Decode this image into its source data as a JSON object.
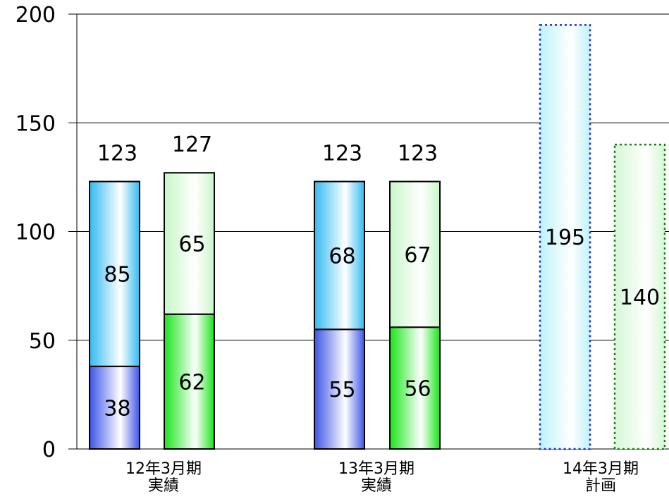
{
  "chart_data": {
    "type": "bar",
    "stacked": true,
    "title": "",
    "xlabel": "",
    "ylabel": "",
    "ylim": [
      0,
      200
    ],
    "yticks": [
      0,
      50,
      100,
      150,
      200
    ],
    "grid": true,
    "legend": "none",
    "groups": [
      {
        "label_lines": [
          "12年3月期",
          "実績"
        ],
        "kind": "actual",
        "bars": [
          {
            "style": "blue",
            "segments": [
              38,
              85
            ],
            "total": 123
          },
          {
            "style": "green",
            "segments": [
              62,
              65
            ],
            "total": 127
          }
        ]
      },
      {
        "label_lines": [
          "13年3月期",
          "実績"
        ],
        "kind": "actual",
        "bars": [
          {
            "style": "blue",
            "segments": [
              55,
              68
            ],
            "total": 123
          },
          {
            "style": "green",
            "segments": [
              56,
              67
            ],
            "total": 123
          }
        ]
      },
      {
        "label_lines": [
          "14年3月期",
          "計画"
        ],
        "kind": "plan",
        "bars": [
          {
            "style": "blue",
            "segments": [
              195
            ],
            "total": 195
          },
          {
            "style": "green",
            "segments": [
              140
            ],
            "total": 140
          }
        ]
      }
    ]
  },
  "colors": {
    "blue_dark": "#3d55e6",
    "blue_light": "#33bbf2",
    "green_dark": "#19e619",
    "green_light": "#c8f7c8",
    "plan_blue_fill": "#bff3fa",
    "plan_green_fill": "#d6f7d6",
    "plan_blue_border": "#1a2fd6",
    "plan_green_border": "#1a7a1a",
    "grid": "#000000",
    "bar_border": "#000000"
  }
}
